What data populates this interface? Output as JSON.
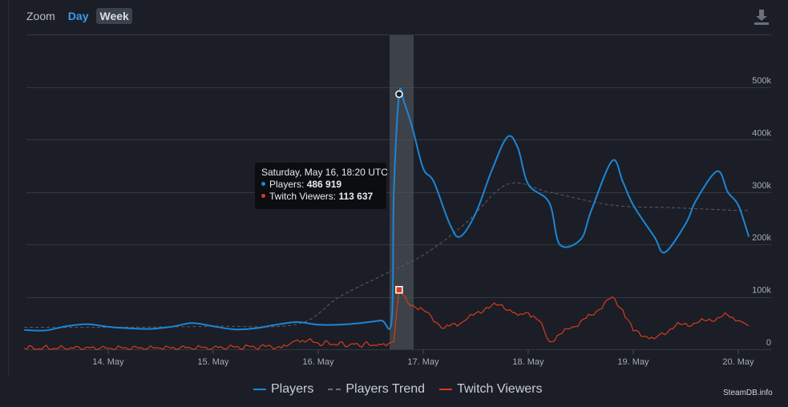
{
  "zoom": {
    "label": "Zoom",
    "day_label": "Day",
    "week_label": "Week"
  },
  "tooltip": {
    "title": "Saturday, May 16, 18:20 UTC",
    "players_label": "Players:",
    "players_value": "486 919",
    "twitch_label": "Twitch Viewers:",
    "twitch_value": "113 637"
  },
  "credits": "SteamDB.info",
  "colors": {
    "players": "#1c85d6",
    "trend": "#5a5e66",
    "twitch": "#d63c1c",
    "background": "#1b1e26"
  },
  "chart_data": {
    "type": "line",
    "x_ticks": [
      "14. May",
      "15. May",
      "16. May",
      "17. May",
      "18. May",
      "19. May",
      "20. May"
    ],
    "y_ticks": [
      "0",
      "100k",
      "200k",
      "300k",
      "400k",
      "500k"
    ],
    "ylim": [
      0,
      500000
    ],
    "grid": true,
    "legend_position": "bottom",
    "highlight_time": "16.77",
    "series": [
      {
        "name": "Players",
        "x": [
          13.2,
          13.4,
          13.6,
          13.8,
          14.0,
          14.2,
          14.4,
          14.6,
          14.8,
          15.0,
          15.2,
          15.4,
          15.6,
          15.8,
          16.0,
          16.2,
          16.4,
          16.6,
          16.7,
          16.72,
          16.77,
          16.82,
          16.9,
          17.0,
          17.1,
          17.25,
          17.35,
          17.5,
          17.65,
          17.8,
          17.9,
          18.0,
          18.2,
          18.3,
          18.5,
          18.6,
          18.8,
          18.9,
          19.0,
          19.2,
          19.3,
          19.5,
          19.6,
          19.8,
          19.9,
          20.0,
          20.1
        ],
        "values": [
          37000,
          36000,
          44000,
          48000,
          43000,
          40000,
          39000,
          43000,
          50000,
          44000,
          38000,
          40000,
          47000,
          52000,
          47000,
          47000,
          50000,
          55000,
          57000,
          300000,
          486919,
          470000,
          420000,
          345000,
          320000,
          240000,
          215000,
          260000,
          340000,
          405000,
          385000,
          315000,
          280000,
          200000,
          210000,
          265000,
          360000,
          320000,
          275000,
          215000,
          185000,
          240000,
          285000,
          340000,
          300000,
          275000,
          215000
        ]
      },
      {
        "name": "Players Trend",
        "x": [
          13.2,
          14.0,
          15.0,
          15.8,
          16.2,
          16.6,
          17.0,
          17.4,
          17.8,
          18.2,
          18.8,
          19.4,
          20.0,
          20.1
        ],
        "values": [
          42000,
          42000,
          44000,
          48000,
          100000,
          140000,
          180000,
          240000,
          315000,
          300000,
          275000,
          270000,
          265000,
          265000
        ]
      },
      {
        "name": "Twitch Viewers",
        "x": [
          13.2,
          14.0,
          14.5,
          15.0,
          15.5,
          15.7,
          15.8,
          16.0,
          16.3,
          16.6,
          16.72,
          16.77,
          16.85,
          17.0,
          17.2,
          17.4,
          17.6,
          17.75,
          17.9,
          18.0,
          18.1,
          18.2,
          18.4,
          18.6,
          18.8,
          18.9,
          19.0,
          19.2,
          19.4,
          19.6,
          19.8,
          19.9,
          20.0,
          20.1
        ],
        "values": [
          2000,
          2000,
          2000,
          3000,
          5000,
          6000,
          18000,
          12000,
          9000,
          9000,
          15000,
          113637,
          90000,
          75000,
          40000,
          55000,
          80000,
          85000,
          65000,
          70000,
          55000,
          15000,
          40000,
          65000,
          100000,
          75000,
          35000,
          20000,
          45000,
          50000,
          60000,
          65000,
          55000,
          45000
        ]
      }
    ]
  }
}
